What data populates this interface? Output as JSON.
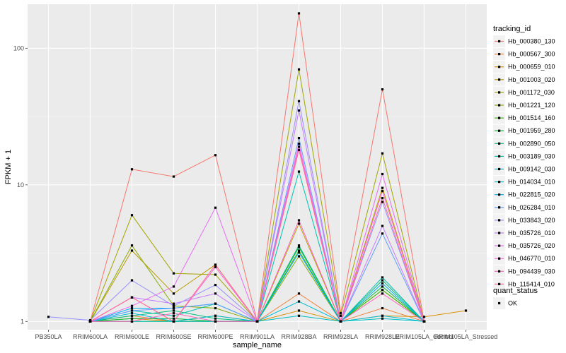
{
  "chart_data": {
    "type": "line",
    "xlabel": "sample_name",
    "ylabel": "FPKM + 1",
    "y_scale": "log10",
    "ylim": [
      0.87,
      210
    ],
    "y_ticks": [
      1,
      10,
      100
    ],
    "y_tick_labels": [
      "1",
      "10",
      "100"
    ],
    "grid": true,
    "legend_position": "right",
    "categories": [
      "PB350LA",
      "RRIM600LA",
      "RRIM600LE",
      "RRIM600SE",
      "RRIM600PE",
      "RRIM901LA",
      "RRIM928BA",
      "RRIM928LA",
      "RRIM928LE",
      "RRIM105LA_Control",
      "RRIM105LA_Stressed"
    ],
    "series": [
      {
        "name": "Hb_000380_130",
        "color": "#F8766D",
        "values": [
          null,
          1.0,
          13.0,
          11.5,
          16.5,
          1.0,
          180.0,
          1.15,
          50.0,
          1.0,
          null
        ]
      },
      {
        "name": "Hb_000567_300",
        "color": "#F0823A",
        "values": [
          null,
          1.0,
          1.1,
          1.0,
          1.0,
          1.0,
          1.6,
          1.0,
          1.25,
          1.0,
          null
        ]
      },
      {
        "name": "Hb_000659_010",
        "color": "#D89000",
        "values": [
          null,
          1.0,
          1.05,
          1.0,
          1.1,
          1.0,
          1.2,
          1.0,
          1.1,
          1.08,
          1.2
        ]
      },
      {
        "name": "Hb_001003_020",
        "color": "#BB9D00",
        "values": [
          null,
          1.0,
          3.3,
          1.6,
          2.6,
          1.0,
          5.2,
          1.0,
          9.5,
          1.0,
          null
        ]
      },
      {
        "name": "Hb_001172_030",
        "color": "#A3A500",
        "values": [
          null,
          1.0,
          6.0,
          2.25,
          2.2,
          1.0,
          70.0,
          1.1,
          17.0,
          1.0,
          null
        ]
      },
      {
        "name": "Hb_001221_120",
        "color": "#85AD00",
        "values": [
          null,
          1.0,
          3.6,
          1.3,
          1.25,
          1.0,
          3.0,
          1.0,
          1.7,
          1.0,
          null
        ]
      },
      {
        "name": "Hb_001514_160",
        "color": "#39B600",
        "values": [
          null,
          1.0,
          1.0,
          1.0,
          1.0,
          1.0,
          3.3,
          1.0,
          1.7,
          1.0,
          null
        ]
      },
      {
        "name": "Hb_001959_280",
        "color": "#00BA38",
        "values": [
          null,
          1.0,
          1.05,
          1.05,
          1.0,
          1.0,
          3.5,
          1.0,
          1.8,
          1.0,
          null
        ]
      },
      {
        "name": "Hb_002890_050",
        "color": "#00BF7D",
        "values": [
          null,
          1.0,
          1.1,
          1.2,
          1.05,
          1.0,
          3.6,
          1.0,
          2.0,
          1.0,
          null
        ]
      },
      {
        "name": "Hb_003189_030",
        "color": "#00C0AF",
        "values": [
          null,
          1.0,
          1.2,
          1.1,
          1.35,
          1.0,
          12.5,
          1.0,
          2.1,
          1.0,
          null
        ]
      },
      {
        "name": "Hb_009142_030",
        "color": "#00BFC4",
        "values": [
          null,
          1.0,
          1.0,
          1.0,
          1.0,
          1.0,
          1.1,
          1.0,
          1.05,
          1.0,
          null
        ]
      },
      {
        "name": "Hb_014034_010",
        "color": "#00BCD8",
        "values": [
          null,
          1.0,
          1.15,
          1.0,
          1.1,
          1.0,
          1.4,
          1.0,
          1.1,
          1.0,
          null
        ]
      },
      {
        "name": "Hb_022815_020",
        "color": "#00B0F6",
        "values": [
          null,
          1.0,
          1.25,
          1.25,
          1.35,
          1.0,
          3.2,
          1.0,
          1.9,
          1.0,
          null
        ]
      },
      {
        "name": "Hb_026284_010",
        "color": "#619CFF",
        "values": [
          null,
          1.0,
          1.2,
          1.25,
          1.35,
          1.0,
          22.0,
          1.0,
          4.4,
          1.0,
          null
        ]
      },
      {
        "name": "Hb_033843_020",
        "color": "#9590FF",
        "values": [
          1.08,
          1.02,
          2.0,
          1.3,
          1.85,
          1.0,
          41.0,
          1.0,
          7.5,
          1.0,
          null
        ]
      },
      {
        "name": "Hb_035726_010",
        "color": "#C77CFF",
        "values": [
          null,
          1.0,
          1.5,
          1.35,
          1.6,
          1.0,
          35.0,
          1.0,
          5.0,
          1.0,
          null
        ]
      },
      {
        "name": "Hb_035726_020",
        "color": "#E76BF3",
        "values": [
          null,
          1.0,
          1.3,
          1.8,
          6.8,
          1.0,
          20.0,
          1.0,
          12.0,
          1.0,
          null
        ]
      },
      {
        "name": "Hb_046770_010",
        "color": "#FA62DB",
        "values": [
          null,
          1.0,
          1.5,
          1.0,
          2.5,
          1.0,
          19.0,
          1.0,
          9.0,
          1.0,
          null
        ]
      },
      {
        "name": "Hb_094439_030",
        "color": "#FF62BC",
        "values": [
          null,
          1.0,
          1.0,
          1.15,
          1.0,
          1.0,
          5.5,
          1.0,
          1.6,
          1.0,
          null
        ]
      },
      {
        "name": "Hb_115414_010",
        "color": "#FF6C91",
        "values": [
          null,
          1.0,
          1.5,
          1.0,
          2.6,
          1.0,
          18.0,
          1.0,
          8.0,
          1.0,
          null
        ]
      }
    ],
    "legend_title": "tracking_id",
    "shape_legend": {
      "title": "quant_status",
      "items": [
        "OK"
      ]
    }
  }
}
